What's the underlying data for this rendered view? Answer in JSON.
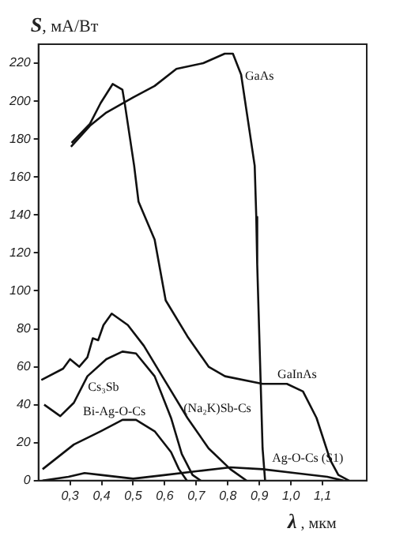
{
  "chart_data": {
    "type": "line",
    "xlabel": "λ , мкм",
    "ylabel": "S, мА/Вт",
    "xlim": [
      0.2,
      1.24
    ],
    "ylim": [
      0,
      230
    ],
    "xticks": [
      {
        "value": 0.3,
        "label": "0,3"
      },
      {
        "value": 0.4,
        "label": "0,4"
      },
      {
        "value": 0.5,
        "label": "0,5"
      },
      {
        "value": 0.6,
        "label": "0,6"
      },
      {
        "value": 0.7,
        "label": "0,7"
      },
      {
        "value": 0.8,
        "label": "0,8"
      },
      {
        "value": 0.9,
        "label": "0,9"
      },
      {
        "value": 1.0,
        "label": "1,0"
      },
      {
        "value": 1.1,
        "label": "1,1"
      }
    ],
    "yticks": [
      0,
      20,
      40,
      60,
      80,
      100,
      120,
      140,
      160,
      180,
      200,
      220
    ],
    "grid": false,
    "legend": false,
    "marker": "none",
    "line_style": "solid",
    "series": [
      {
        "name": "GaAs",
        "color": "#111111",
        "x": [
          0.303,
          0.363,
          0.415,
          0.5,
          0.568,
          0.637,
          0.722,
          0.79,
          0.816,
          0.842,
          0.868,
          0.885,
          0.89,
          0.893,
          0.91,
          0.918
        ],
        "values": [
          176,
          187,
          194,
          202,
          208,
          217,
          220,
          225,
          225,
          214,
          185,
          166,
          139,
          114,
          17,
          0
        ]
      },
      {
        "name": "GaInAs",
        "color": "#111111",
        "x": [
          0.305,
          0.363,
          0.397,
          0.435,
          0.466,
          0.474,
          0.503,
          0.517,
          0.568,
          0.603,
          0.672,
          0.739,
          0.791,
          0.91,
          0.987,
          1.038,
          1.081,
          1.124,
          1.15,
          1.184
        ],
        "values": [
          178,
          188,
          199,
          209,
          206,
          198,
          166,
          147,
          127,
          95,
          76,
          60,
          55,
          51,
          51,
          47,
          33,
          11,
          3,
          0
        ]
      },
      {
        "name": "(Na₂K)Sb-Cs",
        "color": "#111111",
        "x": [
          0.209,
          0.278,
          0.3,
          0.329,
          0.355,
          0.372,
          0.389,
          0.406,
          0.432,
          0.483,
          0.534,
          0.603,
          0.672,
          0.739,
          0.808,
          0.859
        ],
        "values": [
          53,
          59,
          64,
          60,
          65,
          75,
          74,
          82,
          88,
          82,
          71,
          52,
          33,
          17,
          6,
          0
        ]
      },
      {
        "name": "Cs₃Sb",
        "color": "#111111",
        "x": [
          0.218,
          0.269,
          0.312,
          0.355,
          0.415,
          0.466,
          0.509,
          0.568,
          0.62,
          0.654,
          0.688,
          0.714
        ],
        "values": [
          40,
          34,
          41,
          55,
          64,
          68,
          67,
          55,
          33,
          14,
          3,
          0
        ]
      },
      {
        "name": "Bi-Ag-O-Cs",
        "color": "#111111",
        "x": [
          0.213,
          0.312,
          0.397,
          0.466,
          0.509,
          0.568,
          0.62,
          0.645,
          0.67
        ],
        "values": [
          6,
          19,
          26,
          32,
          32,
          26,
          15,
          6,
          0
        ]
      },
      {
        "name": "Ag-O-Cs (S1)",
        "color": "#111111",
        "x": [
          0.213,
          0.295,
          0.346,
          0.397,
          0.5,
          0.603,
          0.705,
          0.808,
          0.91,
          1.013,
          1.115,
          1.166
        ],
        "values": [
          0,
          2,
          4,
          3,
          1,
          3,
          5,
          7,
          6,
          4,
          2,
          0
        ]
      }
    ]
  }
}
